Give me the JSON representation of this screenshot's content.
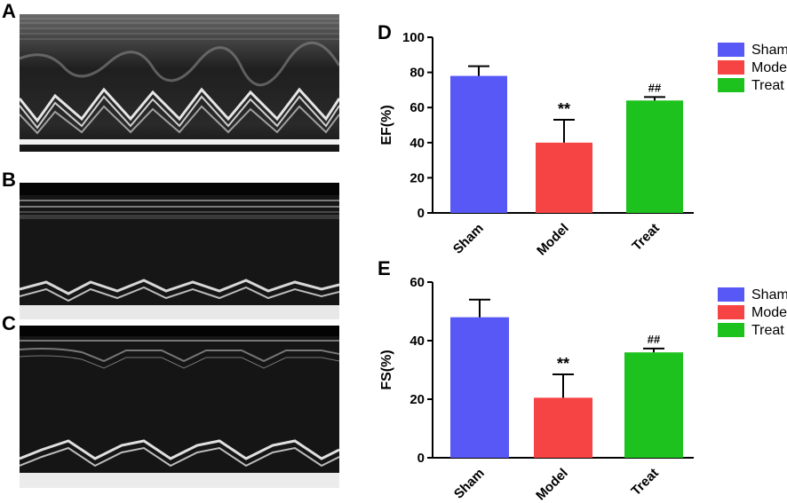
{
  "panels": {
    "a": "A",
    "b": "B",
    "c": "C",
    "d": "D",
    "e": "E"
  },
  "chart_data": [
    {
      "type": "bar",
      "panel": "D",
      "categories": [
        "Sham",
        "Model",
        "Treat"
      ],
      "values": [
        78,
        40,
        64
      ],
      "errors": [
        5.5,
        13,
        2
      ],
      "annotations": [
        "",
        "**",
        "##"
      ],
      "colors": [
        "#5858f6",
        "#f64343",
        "#1ec21e"
      ],
      "ylabel": "EF(%)",
      "xlabel": "",
      "ylim": [
        0,
        100
      ],
      "yticks": [
        0,
        20,
        40,
        60,
        80,
        100
      ],
      "legend": [
        "Sham",
        "Model",
        "Treat"
      ],
      "legend_position": "right"
    },
    {
      "type": "bar",
      "panel": "E",
      "categories": [
        "Sham",
        "Model",
        "Treat"
      ],
      "values": [
        48,
        20.5,
        36
      ],
      "errors": [
        6,
        8,
        1.3
      ],
      "annotations": [
        "",
        "**",
        "##"
      ],
      "colors": [
        "#5858f6",
        "#f64343",
        "#1ec21e"
      ],
      "ylabel": "FS(%)",
      "xlabel": "",
      "ylim": [
        0,
        60
      ],
      "yticks": [
        0,
        20,
        40,
        60
      ],
      "legend": [
        "Sham",
        "Model",
        "Treat"
      ],
      "legend_position": "right"
    }
  ]
}
